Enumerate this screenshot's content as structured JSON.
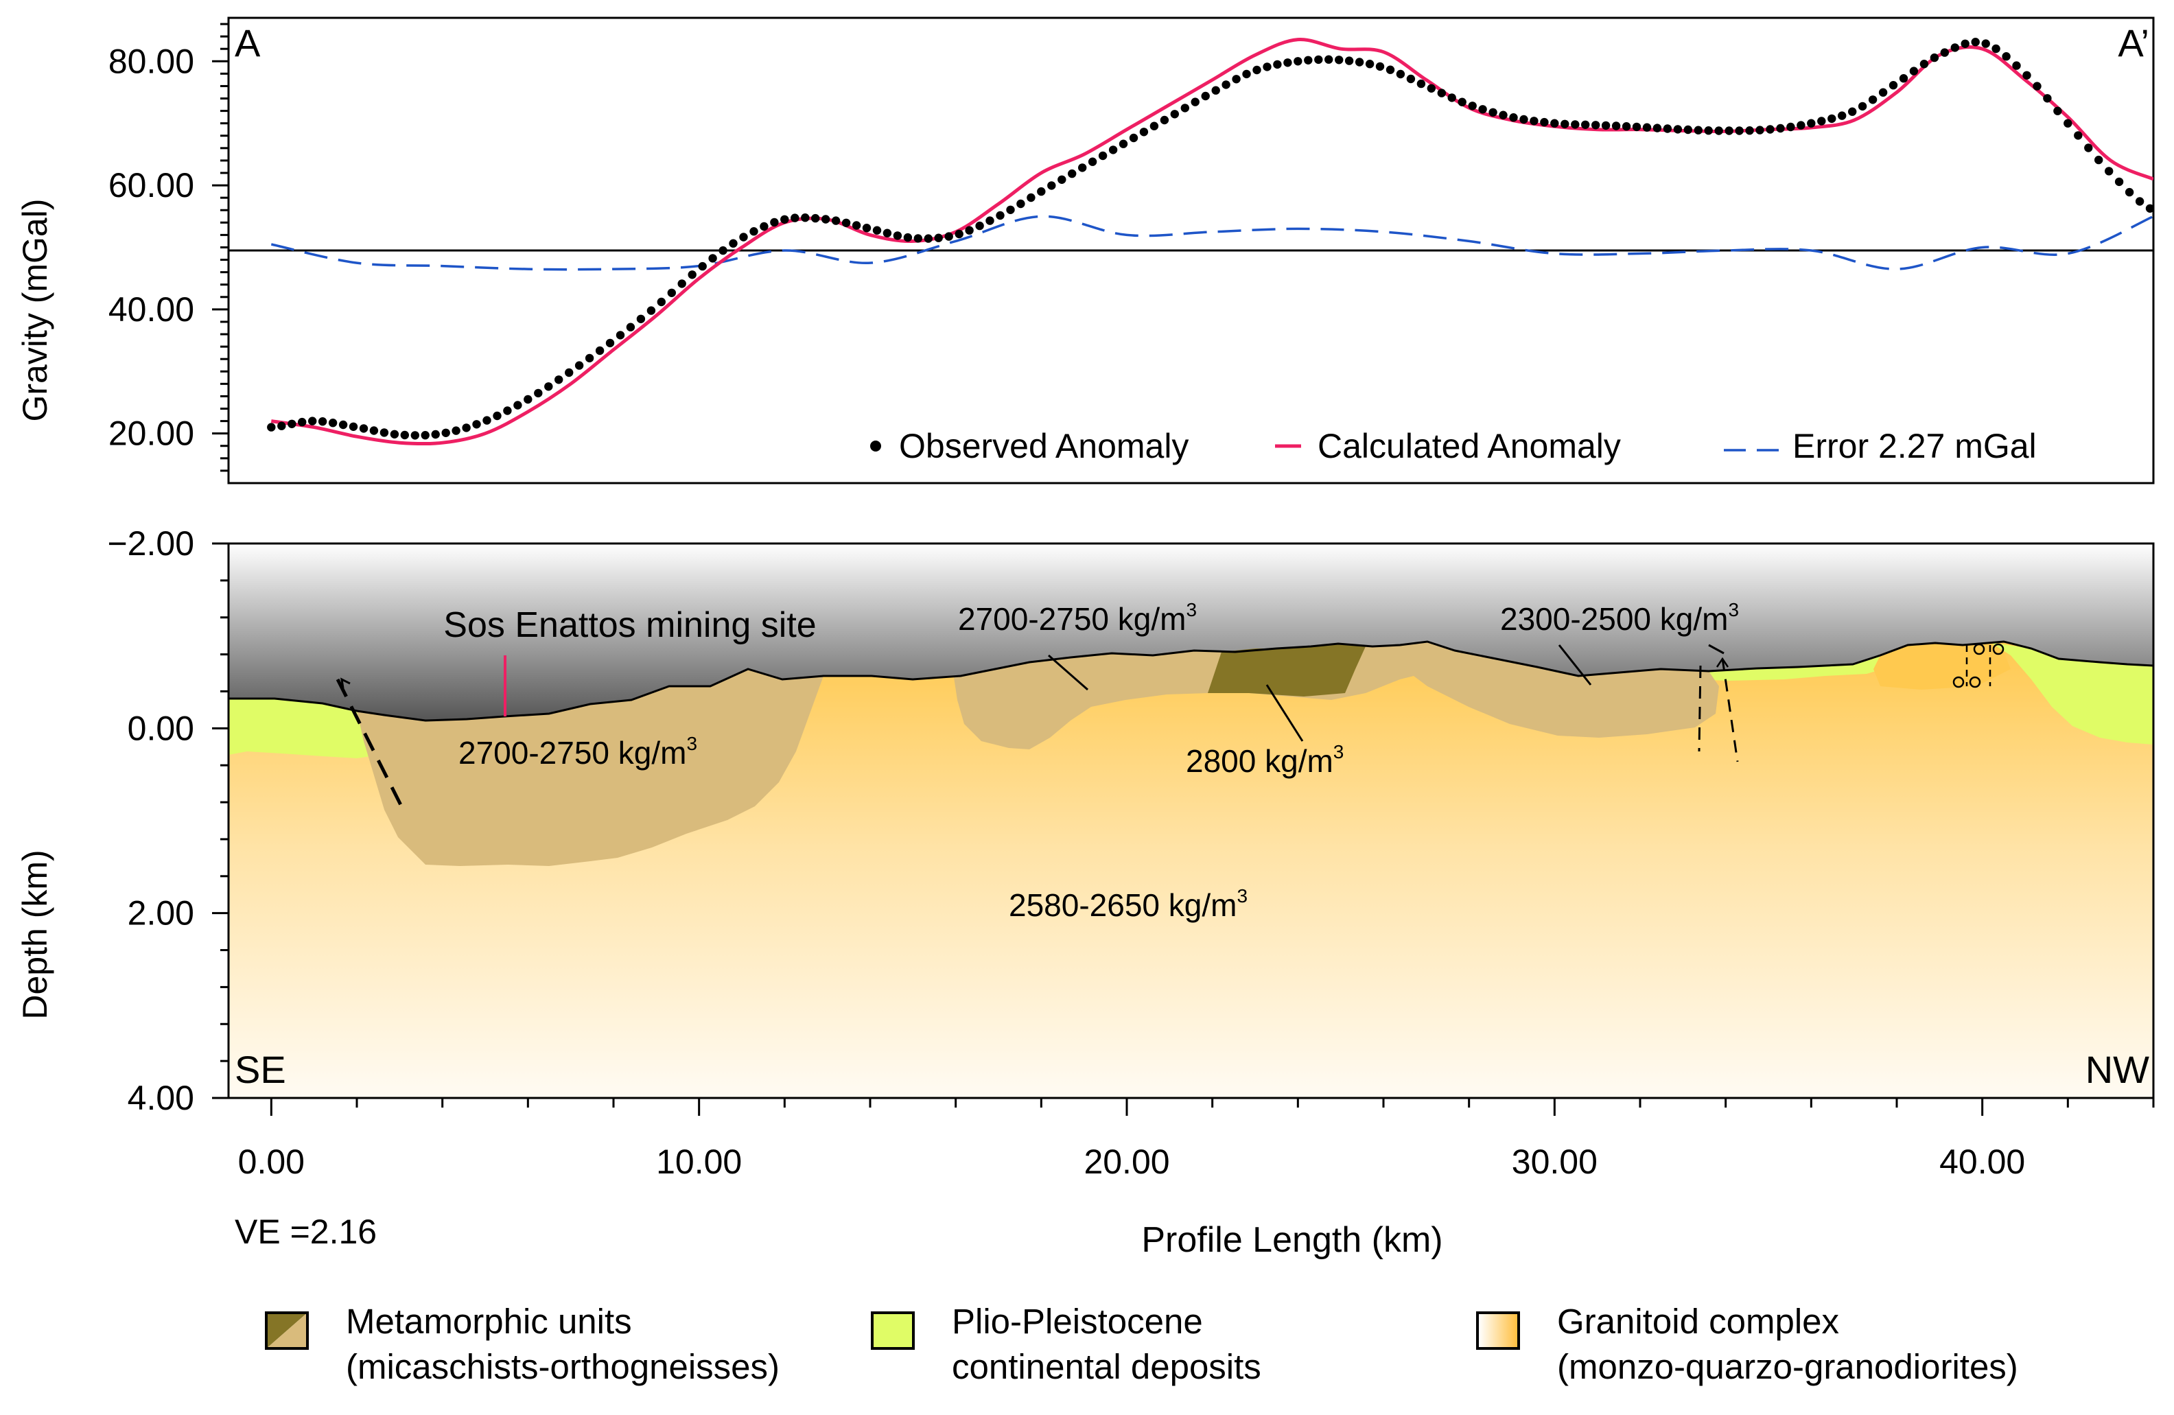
{
  "chart_data": [
    {
      "type": "line",
      "title": "",
      "xlabel": "",
      "ylabel": "Gravity (mGal)",
      "xlim": [
        -1,
        44
      ],
      "ylim": [
        12,
        87
      ],
      "y_ticks": [
        "20.00",
        "40.00",
        "60.00",
        "80.00"
      ],
      "corner_labels": {
        "left": "A",
        "right": "A’"
      },
      "baseline_mgal": 49.5,
      "legend": {
        "observed": "Observed Anomaly",
        "calculated": "Calculated Anomaly",
        "error": "Error 2.27 mGal"
      },
      "series": [
        {
          "name": "Observed Anomaly",
          "style": "dots",
          "x": [
            0,
            1,
            2,
            3,
            4,
            5,
            6,
            7,
            8,
            9,
            10,
            11,
            12,
            13,
            14,
            15,
            16,
            17,
            18,
            19,
            20,
            21,
            22,
            23,
            24,
            25,
            26,
            27,
            28,
            29,
            30,
            31,
            32,
            33,
            34,
            35,
            36,
            37,
            38,
            39,
            40,
            41,
            42,
            43,
            44
          ],
          "values": [
            21,
            22,
            21,
            19.8,
            20,
            22,
            25.5,
            30,
            35,
            40.5,
            46.5,
            51.5,
            54.5,
            54.5,
            53,
            51.5,
            52,
            55,
            59,
            63,
            67,
            71,
            75,
            78.5,
            80,
            80.2,
            79,
            76,
            73,
            71,
            70,
            69.7,
            69.4,
            69,
            68.8,
            69,
            70,
            72,
            76.5,
            81,
            83,
            78,
            70,
            62,
            56
          ]
        },
        {
          "name": "Calculated Anomaly",
          "style": "line",
          "x": [
            0,
            1,
            2,
            3,
            4,
            5,
            6,
            7,
            8,
            9,
            10,
            11,
            12,
            13,
            14,
            15,
            16,
            17,
            18,
            19,
            20,
            21,
            22,
            23,
            24,
            25,
            26,
            27,
            28,
            29,
            30,
            31,
            32,
            33,
            34,
            35,
            36,
            37,
            38,
            39,
            40,
            41,
            42,
            43,
            44
          ],
          "values": [
            22,
            21,
            19.5,
            18.5,
            18.5,
            20,
            23.5,
            28,
            33.5,
            39,
            45,
            50,
            54,
            54.5,
            52,
            51,
            52.5,
            57,
            62,
            65,
            69,
            73,
            77,
            81,
            83.5,
            82,
            81.5,
            77,
            72.5,
            70.5,
            69.5,
            69,
            69,
            68.8,
            68.7,
            69,
            69.3,
            70.5,
            75,
            81,
            82,
            77,
            71,
            64,
            61
          ]
        },
        {
          "name": "Error 2.27 mGal",
          "style": "dashed",
          "x": [
            0,
            2,
            4,
            6,
            8,
            10,
            12,
            14,
            16,
            18,
            20,
            22,
            24,
            26,
            28,
            30,
            32,
            34,
            36,
            38,
            40,
            42,
            44
          ],
          "values": [
            50.5,
            47.5,
            47,
            46.5,
            46.5,
            47,
            49.5,
            47.5,
            51,
            55,
            52,
            52.5,
            53,
            52.5,
            51,
            49,
            49,
            49.5,
            49.5,
            46.5,
            50,
            49,
            55
          ]
        }
      ]
    },
    {
      "type": "cross-section",
      "title": "",
      "xlabel": "Profile Length (km)",
      "ylabel": "Depth (km)",
      "xlim": [
        -1,
        44
      ],
      "ylim": [
        -2,
        4
      ],
      "x_ticks": [
        "0.00",
        "10.00",
        "20.00",
        "30.00",
        "40.00"
      ],
      "y_ticks": [
        "−2.00",
        "0.00",
        "2.00",
        "4.00"
      ],
      "corner_labels": {
        "left": "SE",
        "right": "NW"
      },
      "vertical_exaggeration": "VE =2.16",
      "annotations": [
        {
          "text": "Sos Enattos mining site"
        },
        {
          "text": "2700-2750 kg/m",
          "sup": "3",
          "unit": "left metamorphic body"
        },
        {
          "text": "2700-2750 kg/m",
          "sup": "3",
          "unit": "central metamorphic body"
        },
        {
          "text": "2800 kg/m",
          "sup": "3",
          "unit": "dark metamorphic block"
        },
        {
          "text": "2300-2500 kg/m",
          "sup": "3",
          "unit": "Plio-Pleistocene deposits"
        },
        {
          "text": "2580-2650 kg/m",
          "sup": "3",
          "unit": "granitoid complex"
        }
      ],
      "colors": {
        "metamorphic_light": "#d9bb7c",
        "metamorphic_dark": "#857526",
        "plio_pleistocene": "#e0fc66",
        "granitoid_top": "#ffcb57",
        "granitoid_bottom": "#fffaf0",
        "profile_line": "#ee1f63",
        "error_line": "#1e55c8"
      }
    }
  ],
  "legend": [
    {
      "line1": "Metamorphic units",
      "line2": "(micaschists-orthogneisses)"
    },
    {
      "line1": "Plio-Pleistocene",
      "line2": "continental deposits"
    },
    {
      "line1": "Granitoid complex",
      "line2": "(monzo-quarzo-granodiorites)"
    }
  ]
}
